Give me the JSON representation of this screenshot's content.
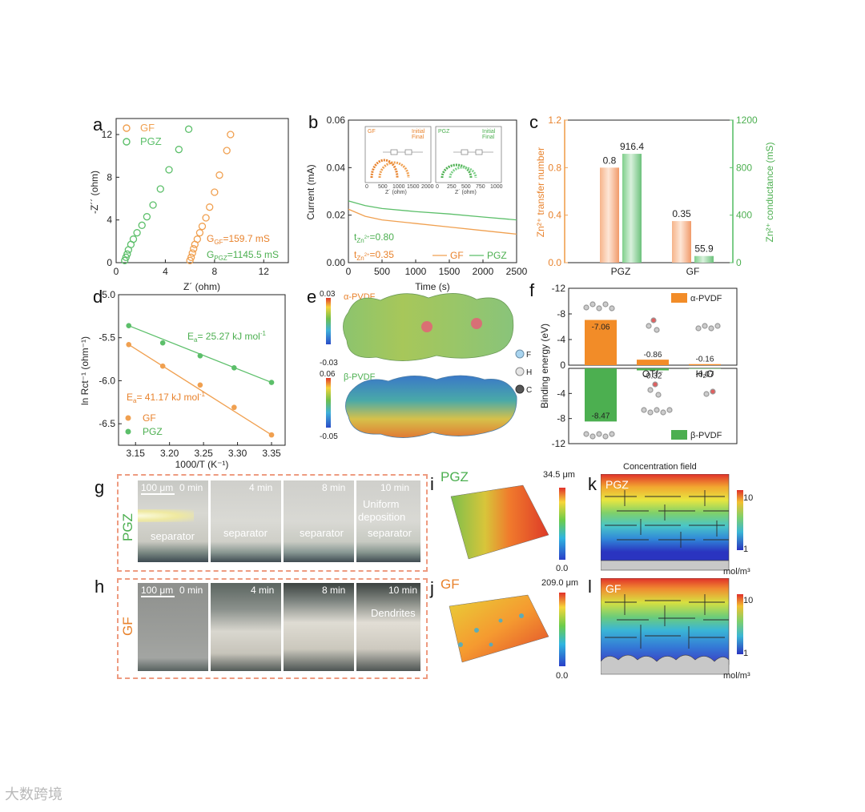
{
  "panels": {
    "a": "a",
    "b": "b",
    "c": "c",
    "d": "d",
    "e": "e",
    "f": "f",
    "g": "g",
    "h": "h",
    "i": "i",
    "j": "j",
    "k": "k",
    "l": "l"
  },
  "colors": {
    "gf": "#f0a050",
    "pgz": "#5cbf6a",
    "orange_dark": "#e8822c",
    "green_dark": "#4caf50"
  },
  "chart_data": [
    {
      "id": "a",
      "type": "scatter",
      "xlabel": "Z´ (ohm)",
      "ylabel": "-Z´´ (ohm)",
      "xlim": [
        0,
        14
      ],
      "ylim": [
        0,
        13.5
      ],
      "xticks": [
        "0",
        "4",
        "8",
        "12"
      ],
      "yticks": [
        "0",
        "4",
        "8",
        "12"
      ],
      "legend": [
        "GF",
        "PGZ"
      ],
      "annotations": [
        "G",
        "GF",
        "=159.7 mS",
        "G",
        "PGZ",
        "=1145.5 mS"
      ],
      "series": [
        {
          "name": "GF",
          "x": [
            6.0,
            6.1,
            6.2,
            6.3,
            6.4,
            6.6,
            6.8,
            7.0,
            7.3,
            7.6,
            8.0,
            8.4,
            9.0,
            9.3
          ],
          "y": [
            0.2,
            0.5,
            0.9,
            1.3,
            1.7,
            2.2,
            2.8,
            3.4,
            4.2,
            5.2,
            6.6,
            8.2,
            10.5,
            12.0
          ]
        },
        {
          "name": "PGZ",
          "x": [
            0.7,
            0.8,
            0.9,
            1.0,
            1.2,
            1.4,
            1.7,
            2.1,
            2.5,
            3.0,
            3.6,
            4.3,
            5.1,
            5.9
          ],
          "y": [
            0.2,
            0.5,
            0.8,
            1.2,
            1.7,
            2.2,
            2.8,
            3.5,
            4.3,
            5.4,
            6.9,
            8.7,
            10.6,
            12.5
          ]
        }
      ]
    },
    {
      "id": "b",
      "type": "line",
      "xlabel": "Time (s)",
      "ylabel": "Current (mA)",
      "xlim": [
        0,
        2500
      ],
      "ylim": [
        0,
        0.06
      ],
      "xticks": [
        "0",
        "500",
        "1000",
        "1500",
        "2000",
        "2500"
      ],
      "yticks": [
        "0.00",
        "0.02",
        "0.04",
        "0.06"
      ],
      "legend": [
        "GF",
        "PGZ"
      ],
      "annotations": [
        "t",
        "Zn",
        "2+",
        "=0.80",
        "t",
        "Zn",
        "2+",
        "=0.35"
      ],
      "series": [
        {
          "name": "GF",
          "x": [
            0,
            250,
            500,
            1000,
            1500,
            2000,
            2500
          ],
          "y": [
            0.0225,
            0.0195,
            0.018,
            0.0165,
            0.015,
            0.0135,
            0.012
          ]
        },
        {
          "name": "PGZ",
          "x": [
            0,
            250,
            500,
            1000,
            1500,
            2000,
            2500
          ],
          "y": [
            0.026,
            0.024,
            0.0228,
            0.0215,
            0.0205,
            0.0192,
            0.018
          ]
        }
      ],
      "insets": [
        {
          "legend_title": "GF",
          "legend": [
            "Initial",
            "Final"
          ],
          "xticks": [
            "0",
            "500",
            "1000",
            "1500",
            "2000"
          ],
          "yticks": [
            "0",
            "500",
            "1000",
            "1500",
            "2000"
          ],
          "xlabel": "Z´ (ohm)",
          "ylabel": "-Z´´ (ohm)"
        },
        {
          "legend_title": "PGZ",
          "legend": [
            "Initial",
            "Final"
          ],
          "xticks": [
            "0",
            "250",
            "500",
            "750",
            "1000"
          ],
          "yticks": [
            "0",
            "500",
            "1000",
            "1500",
            "2000"
          ],
          "xlabel": "Z´ (ohm)",
          "ylabel": "-Z´´ (ohm)"
        }
      ]
    },
    {
      "id": "c",
      "type": "bar",
      "categories": [
        "PGZ",
        "GF"
      ],
      "series": [
        {
          "name": "Zn2+ transfer number",
          "values": [
            0.8,
            0.35
          ],
          "labels": [
            "0.8",
            "0.35"
          ]
        },
        {
          "name": "Zn2+ conductance",
          "values": [
            916.4,
            55.9
          ],
          "labels": [
            "916.4",
            "55.9"
          ]
        }
      ],
      "ylabel_left": "Zn²⁺ transfer number",
      "ylabel_right": "Zn²⁺ conductance (mS)",
      "ylim_left": [
        0,
        1.2
      ],
      "ylim_right": [
        0,
        1200
      ],
      "yticks_left": [
        "0.0",
        "0.4",
        "0.8",
        "1.2"
      ],
      "yticks_right": [
        "0",
        "400",
        "800",
        "1200"
      ]
    },
    {
      "id": "d",
      "type": "scatter",
      "xlabel": "1000/T (K⁻¹)",
      "ylabel": "ln Rct⁻¹ (ohm⁻¹)",
      "xlim": [
        3.125,
        3.37
      ],
      "ylim": [
        -6.75,
        -5.0
      ],
      "xticks": [
        "3.15",
        "3.20",
        "3.25",
        "3.30",
        "3.35"
      ],
      "yticks": [
        "-5.0",
        "-5.5",
        "-6.0",
        "-6.5"
      ],
      "legend": [
        "GF",
        "PGZ"
      ],
      "annotations": [
        "E",
        "a",
        "= 25.27 kJ mol",
        "-1",
        "E",
        "a",
        "= 41.17 kJ mol",
        "-1"
      ],
      "series": [
        {
          "name": "GF",
          "x": [
            3.14,
            3.19,
            3.245,
            3.295,
            3.35
          ],
          "y": [
            -5.58,
            -5.83,
            -6.05,
            -6.31,
            -6.63
          ]
        },
        {
          "name": "PGZ",
          "x": [
            3.14,
            3.19,
            3.245,
            3.295,
            3.35
          ],
          "y": [
            -5.36,
            -5.56,
            -5.71,
            -5.85,
            -6.02
          ]
        }
      ]
    },
    {
      "id": "f",
      "type": "bar",
      "ylabel": "Binding energy (eV)",
      "categories": [
        "Zn2+",
        "OTf-",
        "H2O"
      ],
      "category_labels": [
        "Zn²⁺",
        "OTf⁻",
        "H₂O"
      ],
      "series": [
        {
          "name": "α-PVDF",
          "values": [
            -7.06,
            -0.86,
            -0.16
          ],
          "labels": [
            "-7.06",
            "-0.86",
            "-0.16"
          ]
        },
        {
          "name": "β-PVDF",
          "values": [
            -8.47,
            -0.32,
            -0.07
          ],
          "labels": [
            "-8.47",
            "-0.32",
            "-0.07"
          ]
        }
      ],
      "yticks_top": [
        "-12",
        "-8",
        "-4",
        "0"
      ],
      "yticks_bottom": [
        "-4",
        "-8",
        "-12"
      ],
      "ylim": [
        0,
        -12
      ]
    }
  ],
  "panel_e": {
    "alpha_label": "α-PVDF",
    "beta_label": "β-PVDF",
    "alpha_max": "0.03",
    "alpha_min": "-0.03",
    "beta_max": "0.06",
    "beta_min": "-0.05",
    "atoms": [
      "F",
      "H",
      "C"
    ]
  },
  "panel_g": {
    "label": "PGZ",
    "scale": "100 μm",
    "times": [
      "0 min",
      "4 min",
      "8 min",
      "10 min"
    ],
    "separator": "separator",
    "note_lines": [
      "Uniform",
      "deposition"
    ]
  },
  "panel_h": {
    "label": "GF",
    "scale": "100 μm",
    "times": [
      "0 min",
      "4 min",
      "8 min",
      "10 min"
    ],
    "note": "Dendrites"
  },
  "panel_i": {
    "label": "PGZ",
    "max": "34.5 μm",
    "min": "0.0"
  },
  "panel_j": {
    "label": "GF",
    "max": "209.0 μm",
    "min": "0.0"
  },
  "panel_k": {
    "title": "Concentration field",
    "label": "PGZ",
    "max": "10",
    "min": "1",
    "unit": "mol/m³"
  },
  "panel_l": {
    "label": "GF",
    "max": "10",
    "min": "1",
    "unit": "mol/m³"
  },
  "watermark": "大数跨境"
}
